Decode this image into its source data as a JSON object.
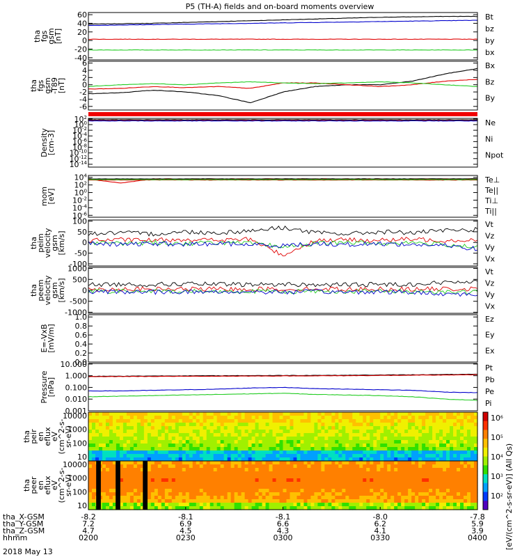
{
  "title": "P5 (TH-A) fields and on-board moments overview",
  "date_label": "2018 May 13",
  "colors": {
    "black": "#000000",
    "red": "#e00000",
    "green": "#22cc22",
    "blue": "#0000cc"
  },
  "chart_data": [
    {
      "type": "line",
      "id": "fgs",
      "ylabel": [
        "tha",
        "fgs",
        "gsm",
        "[nT]"
      ],
      "yticks": [
        "60",
        "40",
        "20",
        "0",
        "-20",
        "-40"
      ],
      "ylim": [
        -45,
        65
      ],
      "scale": "linear",
      "series": [
        {
          "name": "Bt",
          "color": "black",
          "values": [
            38,
            39,
            40,
            42,
            44,
            46,
            48,
            50,
            52,
            54,
            55,
            56,
            56
          ]
        },
        {
          "name": "bz",
          "color": "red",
          "values": [
            3,
            3,
            3,
            3,
            3,
            3,
            3,
            3,
            3,
            3,
            3,
            3,
            3
          ]
        },
        {
          "name": "by",
          "color": "green",
          "values": [
            -22,
            -22,
            -22,
            -22,
            -22,
            -22,
            -22,
            -22,
            -22,
            -22,
            -22,
            -22,
            -22
          ]
        },
        {
          "name": "bx",
          "color": "blue",
          "values": [
            35,
            36,
            37,
            38,
            39,
            40,
            41,
            42,
            43,
            44,
            45,
            46,
            47
          ]
        }
      ]
    },
    {
      "type": "line",
      "id": "fgs-dst",
      "ylabel": [
        "tha",
        "fgs",
        "gsm",
        "-T89",
        "[nT]"
      ],
      "yticks": [
        "6",
        "4",
        "2",
        "0",
        "-2",
        "-4",
        "-6"
      ],
      "ylim": [
        -7,
        6.5
      ],
      "scale": "linear",
      "series": [
        {
          "name": "Bx",
          "color": "black",
          "values": [
            -2.5,
            -2.2,
            -1.5,
            -2,
            -3,
            -5,
            -2,
            -0.5,
            0,
            0,
            1,
            3,
            4.5
          ]
        },
        {
          "name": "Bz",
          "color": "red",
          "values": [
            -1.2,
            -1,
            -0.5,
            -0.8,
            -0.5,
            -1,
            0.5,
            0.5,
            0,
            -0.5,
            0,
            1,
            1.5
          ]
        },
        {
          "name": "By",
          "color": "green",
          "values": [
            -0.5,
            0,
            0.3,
            0,
            0.5,
            0.8,
            0.5,
            0.3,
            0.5,
            0.8,
            0.5,
            0,
            -0.5
          ]
        }
      ]
    },
    {
      "type": "line",
      "id": "density",
      "ylabel": [
        "Density",
        "[cm-3]"
      ],
      "yticks": [
        "10^2",
        "10^0",
        "10^-2",
        "10^-4",
        "10^-6",
        "10^-8",
        "10^-10",
        "10^-12",
        "10^-14"
      ],
      "ylim": [
        -15,
        2.2
      ],
      "scale": "log",
      "series": [
        {
          "name": "Ne",
          "color": "red",
          "values": [
            1.5,
            1.5,
            1.5,
            1.5,
            1.5,
            1.5,
            1.5,
            1.5,
            1.5,
            1.5,
            1.5,
            1.5,
            1.5
          ]
        },
        {
          "name": "Ni",
          "color": "black",
          "values": [
            1.7,
            1.7,
            1.7,
            1.7,
            1.7,
            1.7,
            1.7,
            1.7,
            1.7,
            1.7,
            1.7,
            1.7,
            1.7
          ]
        },
        {
          "name": "Npot",
          "color": "blue",
          "values": [
            1.3,
            1.3,
            1.3,
            1.3,
            1.3,
            1.3,
            1.3,
            1.3,
            1.3,
            1.3,
            1.3,
            1.3,
            1.3
          ]
        }
      ]
    },
    {
      "type": "line",
      "id": "temp",
      "ylabel": [
        "mom",
        "[eV]"
      ],
      "yticks": [
        "10^4",
        "10^2",
        "10^0",
        "10^-2",
        "10^-4",
        "10^-6"
      ],
      "ylim": [
        -6.5,
        4.5
      ],
      "scale": "log",
      "series": [
        {
          "name": "Te⊥",
          "color": "red",
          "values": [
            3.5,
            2.5,
            3.6,
            3.6,
            3.6,
            3.6,
            3.6,
            3.6,
            3.6,
            3.6,
            3.6,
            3.6,
            3.6
          ]
        },
        {
          "name": "Te||",
          "color": "black",
          "values": [
            3.6,
            3.6,
            3.6,
            3.6,
            3.6,
            3.6,
            3.6,
            3.6,
            3.6,
            3.6,
            3.6,
            3.6,
            3.6
          ]
        },
        {
          "name": "Ti⊥",
          "color": "red",
          "values": [
            3.3,
            3.3,
            3.3,
            3.3,
            3.3,
            3.3,
            3.3,
            3.3,
            3.3,
            3.3,
            3.3,
            3.3,
            3.3
          ]
        },
        {
          "name": "Ti||",
          "color": "green",
          "values": [
            3.4,
            3.4,
            3.4,
            3.4,
            3.4,
            3.4,
            3.4,
            3.4,
            3.4,
            3.4,
            3.4,
            3.4,
            3.4
          ]
        }
      ]
    },
    {
      "type": "line",
      "id": "peim-vel",
      "ylabel": [
        "tha",
        "peim",
        "velocity",
        "gsm",
        "[km/s]"
      ],
      "yticks": [
        "100",
        "50",
        "0",
        "-50",
        "-100"
      ],
      "ylim": [
        -110,
        105
      ],
      "scale": "linear",
      "series": [
        {
          "name": "Vt",
          "color": "black",
          "values": [
            40,
            45,
            40,
            50,
            45,
            55,
            70,
            45,
            40,
            50,
            45,
            55,
            60
          ]
        },
        {
          "name": "Vz",
          "color": "red",
          "values": [
            10,
            12,
            10,
            15,
            10,
            15,
            -60,
            10,
            12,
            10,
            15,
            10,
            12
          ]
        },
        {
          "name": "Vy",
          "color": "green",
          "values": [
            0,
            -5,
            0,
            -5,
            0,
            -5,
            -20,
            -5,
            0,
            -5,
            0,
            -10,
            -20
          ]
        },
        {
          "name": "Vx",
          "color": "blue",
          "values": [
            -5,
            -10,
            -5,
            -10,
            -5,
            -10,
            -15,
            -5,
            -10,
            -5,
            -10,
            -15,
            -30
          ]
        }
      ]
    },
    {
      "type": "line",
      "id": "peem-vel",
      "ylabel": [
        "tha",
        "peem",
        "velocity",
        "gsm",
        "[km/s]"
      ],
      "yticks": [
        "1000",
        "500",
        "0",
        "-500",
        "-1000"
      ],
      "ylim": [
        -1050,
        1050
      ],
      "scale": "linear",
      "series": [
        {
          "name": "Vt",
          "color": "black",
          "values": [
            250,
            280,
            260,
            300,
            270,
            260,
            280,
            250,
            260,
            270,
            280,
            350,
            450
          ]
        },
        {
          "name": "Vz",
          "color": "red",
          "values": [
            50,
            60,
            50,
            60,
            50,
            60,
            50,
            60,
            50,
            60,
            50,
            60,
            50
          ]
        },
        {
          "name": "Vy",
          "color": "green",
          "values": [
            -50,
            -40,
            -50,
            -40,
            -50,
            -40,
            -50,
            -40,
            -50,
            -40,
            -50,
            -60,
            -80
          ]
        },
        {
          "name": "Vx",
          "color": "blue",
          "values": [
            -80,
            -60,
            -80,
            -60,
            -80,
            -60,
            -80,
            -60,
            -80,
            -60,
            -100,
            -150,
            -200
          ]
        }
      ]
    },
    {
      "type": "line",
      "id": "efield",
      "ylabel": [
        "E=-VxB",
        "[mV/m]"
      ],
      "yticks": [
        "1.0",
        "0.8",
        "0.6",
        "0.4",
        "0.2",
        "0.0"
      ],
      "ylim": [
        0,
        1.05
      ],
      "scale": "linear",
      "series": [
        {
          "name": "Ez",
          "color": "red",
          "values": []
        },
        {
          "name": "Ey",
          "color": "green",
          "values": []
        },
        {
          "name": "Ex",
          "color": "blue",
          "values": []
        }
      ]
    },
    {
      "type": "line",
      "id": "pressure",
      "ylabel": [
        "Pressure",
        "[nPa]"
      ],
      "yticks": [
        "10.000",
        "1.000",
        "0.100",
        "0.010",
        "0.001"
      ],
      "ylim": [
        -3,
        1.05
      ],
      "scale": "log",
      "series": [
        {
          "name": "Pt",
          "color": "black",
          "values": [
            -0.05,
            -0.04,
            -0.02,
            -0.01,
            0,
            0.01,
            0.02,
            0.03,
            0.04,
            0.06,
            0.08,
            0.1,
            0.12
          ]
        },
        {
          "name": "Pb",
          "color": "red",
          "values": [
            -0.08,
            -0.07,
            -0.06,
            -0.05,
            -0.04,
            -0.03,
            -0.02,
            -0.01,
            0,
            0.02,
            0.04,
            0.06,
            0.08
          ]
        },
        {
          "name": "Pe",
          "color": "blue",
          "values": [
            -1.3,
            -1.3,
            -1.25,
            -1.2,
            -1.15,
            -1.05,
            -1.0,
            -1.1,
            -1.15,
            -1.2,
            -1.25,
            -1.4,
            -1.45
          ]
        },
        {
          "name": "Pi",
          "color": "green",
          "values": [
            -1.8,
            -1.75,
            -1.7,
            -1.65,
            -1.6,
            -1.55,
            -1.5,
            -1.6,
            -1.65,
            -1.7,
            -1.8,
            -2.0,
            -2.1
          ]
        }
      ]
    },
    {
      "type": "heatmap",
      "id": "peir-spec",
      "ylabel": [
        "tha",
        "peir",
        "en",
        "eflux",
        "eV",
        "(cm^2-s-",
        "sr-eV)"
      ],
      "yticks": [
        "10000",
        "1000",
        "100",
        "10"
      ],
      "ylim": [
        0.7,
        4.25
      ],
      "scale": "log"
    },
    {
      "type": "heatmap",
      "id": "peer-spec",
      "ylabel": [
        "tha",
        "peer",
        "en",
        "eflux",
        "eV",
        "(cm^2-s-",
        "sr-eV)"
      ],
      "yticks": [
        "10000",
        "1000",
        "100",
        "10"
      ],
      "ylim": [
        0.7,
        4.25
      ],
      "scale": "log"
    }
  ],
  "colorbar": {
    "label": "[eV/(cm^2-s-sr-eV)] (All Qs)",
    "ticks": [
      "10^6",
      "10^5",
      "10^4",
      "10^3",
      "10^2"
    ]
  },
  "xaxis": {
    "time_ticks": [
      "0200",
      "0230",
      "0300",
      "0330",
      "0400"
    ],
    "rows": [
      {
        "label": "tha_X-GSM",
        "values": [
          "-8.2",
          "-8.1",
          "-8.1",
          "-8.0",
          "-7.8"
        ]
      },
      {
        "label": "tha_Y-GSM",
        "values": [
          "7.2",
          "6.9",
          "6.6",
          "6.2",
          "5.9"
        ]
      },
      {
        "label": "tha_Z-GSM",
        "values": [
          "4.7",
          "4.5",
          "4.3",
          "4.1",
          "3.9"
        ]
      },
      {
        "label": "hhmm",
        "values": [
          "0200",
          "0230",
          "0300",
          "0330",
          "0400"
        ]
      }
    ]
  }
}
